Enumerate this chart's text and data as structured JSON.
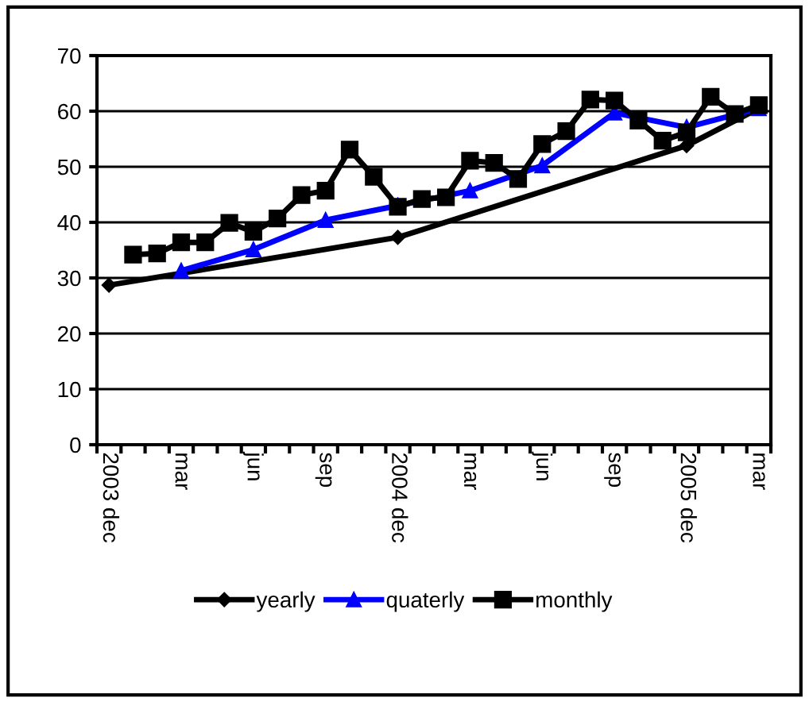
{
  "chart_data": {
    "type": "line",
    "categories": [
      "2003 dec",
      null,
      null,
      "mar",
      null,
      null,
      "jun",
      null,
      null,
      "sep",
      null,
      null,
      "2004 dec",
      null,
      null,
      "mar",
      null,
      null,
      "jun",
      null,
      null,
      "sep",
      null,
      null,
      "2005 dec",
      null,
      null,
      "mar"
    ],
    "series": [
      {
        "name": "yearly",
        "color": "#000000",
        "marker": "diamond",
        "values": [
          28.7,
          null,
          null,
          null,
          null,
          null,
          null,
          null,
          null,
          null,
          null,
          null,
          37.3,
          null,
          null,
          null,
          null,
          null,
          null,
          null,
          null,
          null,
          null,
          null,
          53.8,
          null,
          null,
          60.5
        ]
      },
      {
        "name": "quaterly",
        "color": "#0000ff",
        "marker": "triangle",
        "values": [
          null,
          null,
          null,
          31.3,
          null,
          null,
          35.1,
          null,
          null,
          40.4,
          null,
          null,
          43.0,
          null,
          null,
          45.7,
          null,
          null,
          50.2,
          null,
          null,
          59.7,
          null,
          null,
          57.1,
          null,
          null,
          60.5
        ]
      },
      {
        "name": "monthly",
        "color": "#000000",
        "marker": "square",
        "values": [
          null,
          34.2,
          34.4,
          36.4,
          36.4,
          39.9,
          38.3,
          40.7,
          44.9,
          45.7,
          53.1,
          48.2,
          42.8,
          44.2,
          44.5,
          51.1,
          50.7,
          47.8,
          54.1,
          56.4,
          62.1,
          61.9,
          58.3,
          54.7,
          56.2,
          62.6,
          59.5,
          61.1
        ]
      }
    ],
    "ylim": [
      0,
      70
    ],
    "yticks": [
      0,
      10,
      20,
      30,
      40,
      50,
      60,
      70
    ],
    "grid": "y",
    "legend": "bottom",
    "line_style": "solid"
  }
}
